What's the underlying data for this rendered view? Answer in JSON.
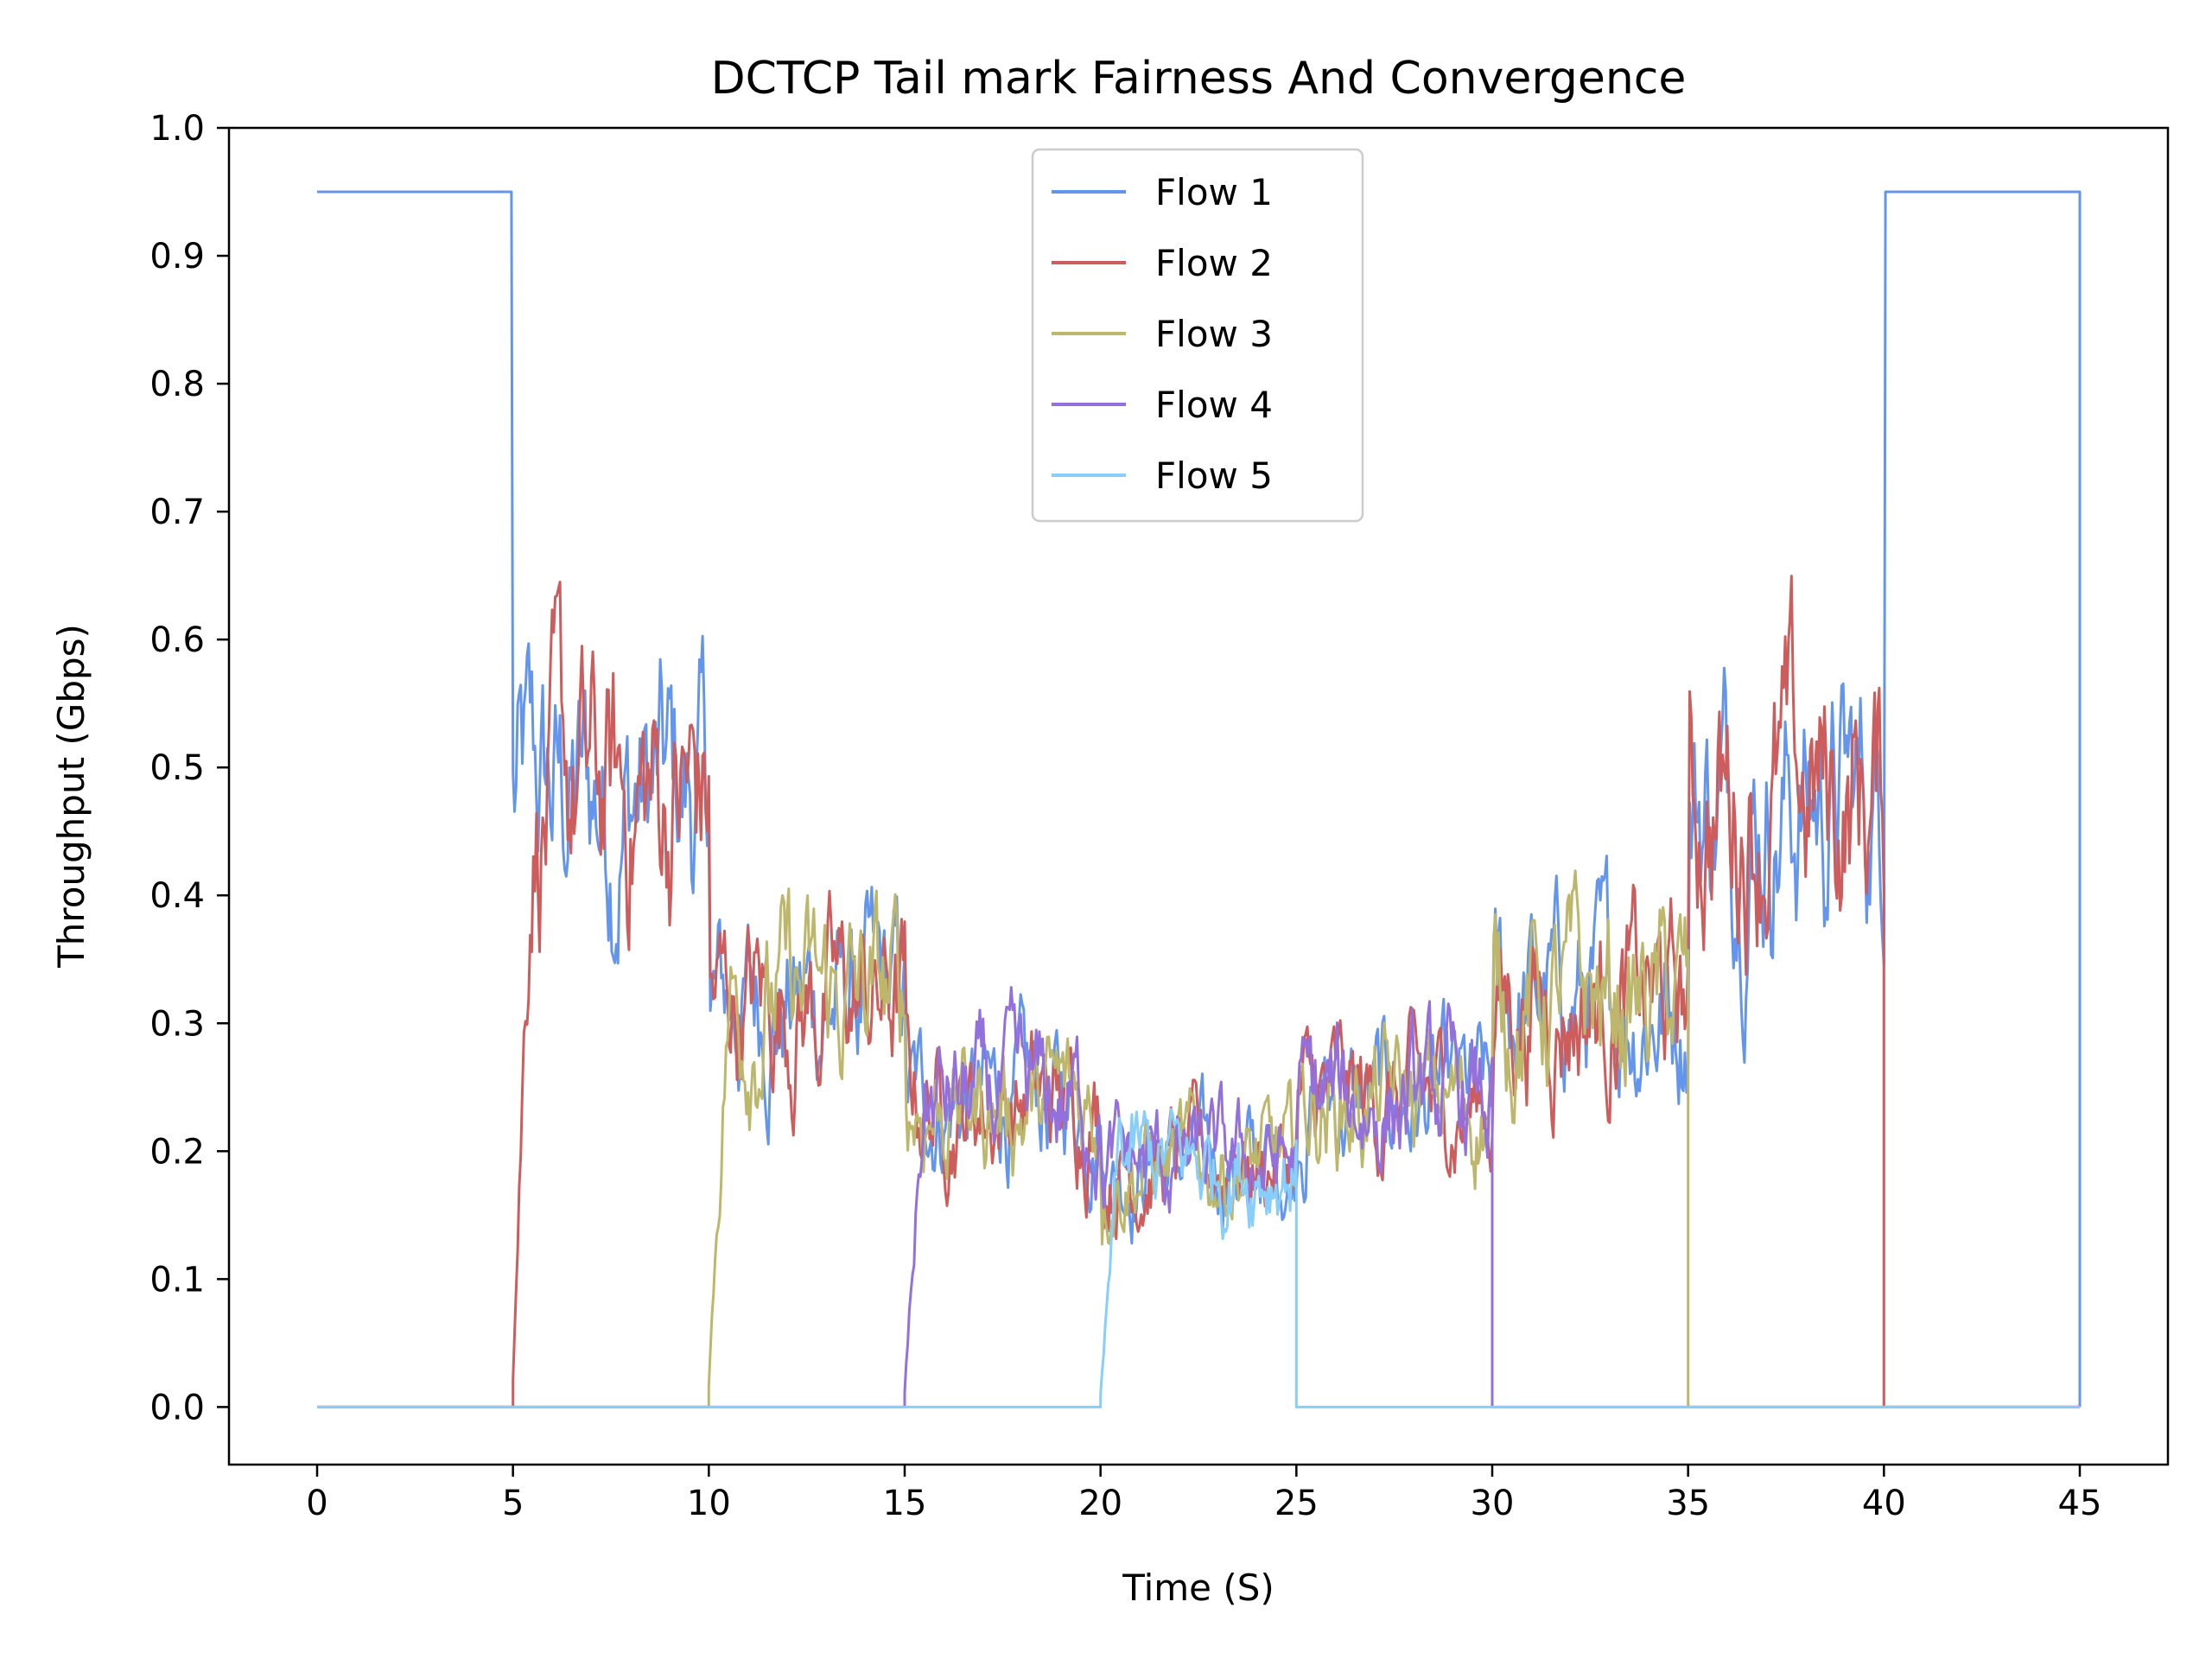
{
  "chart_data": {
    "type": "line",
    "title": "DCTCP Tail mark Fairness And Convergence",
    "xlabel": "Time (S)",
    "ylabel": "Throughput (Gbps)",
    "xlim": [
      -2.25,
      47.25
    ],
    "ylim": [
      -0.045,
      1.0
    ],
    "xticks": [
      0,
      5,
      10,
      15,
      20,
      25,
      30,
      35,
      40,
      45
    ],
    "yticks": [
      0.0,
      0.1,
      0.2,
      0.3,
      0.4,
      0.5,
      0.6,
      0.7,
      0.8,
      0.9,
      1.0
    ],
    "xtick_labels": [
      "0",
      "5",
      "10",
      "15",
      "20",
      "25",
      "30",
      "35",
      "40",
      "45"
    ],
    "ytick_labels": [
      "0.0",
      "0.1",
      "0.2",
      "0.3",
      "0.4",
      "0.5",
      "0.6",
      "0.7",
      "0.8",
      "0.9",
      "1.0"
    ],
    "grid": false,
    "legend_position": "upper-center",
    "series": [
      {
        "name": "Flow 1",
        "color": "#6495ED",
        "active": [
          [
            0,
            45
          ]
        ],
        "segments": [
          [
            0,
            5,
            0.95
          ],
          [
            5,
            10,
            0.475
          ],
          [
            10,
            15,
            0.317
          ],
          [
            15,
            20,
            0.2375
          ],
          [
            20,
            25,
            0.19
          ],
          [
            25,
            30,
            0.2375
          ],
          [
            30,
            35,
            0.317
          ],
          [
            35,
            40,
            0.475
          ],
          [
            40,
            45,
            0.95
          ]
        ]
      },
      {
        "name": "Flow 2",
        "color": "#CD5C5C",
        "active": [
          [
            5,
            40
          ]
        ],
        "segments": [
          [
            5,
            10,
            0.475
          ],
          [
            10,
            15,
            0.317
          ],
          [
            15,
            20,
            0.2375
          ],
          [
            20,
            25,
            0.19
          ],
          [
            25,
            30,
            0.2375
          ],
          [
            30,
            35,
            0.317
          ],
          [
            35,
            40,
            0.475
          ]
        ]
      },
      {
        "name": "Flow 3",
        "color": "#BDB76B",
        "active": [
          [
            10,
            35
          ]
        ],
        "segments": [
          [
            10,
            15,
            0.317
          ],
          [
            15,
            20,
            0.2375
          ],
          [
            20,
            25,
            0.19
          ],
          [
            25,
            30,
            0.2375
          ],
          [
            30,
            35,
            0.317
          ]
        ]
      },
      {
        "name": "Flow 4",
        "color": "#9370DB",
        "active": [
          [
            15,
            30
          ]
        ],
        "segments": [
          [
            15,
            20,
            0.2375
          ],
          [
            20,
            25,
            0.19
          ],
          [
            25,
            30,
            0.2375
          ]
        ]
      },
      {
        "name": "Flow 5",
        "color": "#87CEFA",
        "active": [
          [
            20,
            25
          ]
        ],
        "segments": [
          [
            20,
            25,
            0.19
          ]
        ]
      }
    ]
  }
}
